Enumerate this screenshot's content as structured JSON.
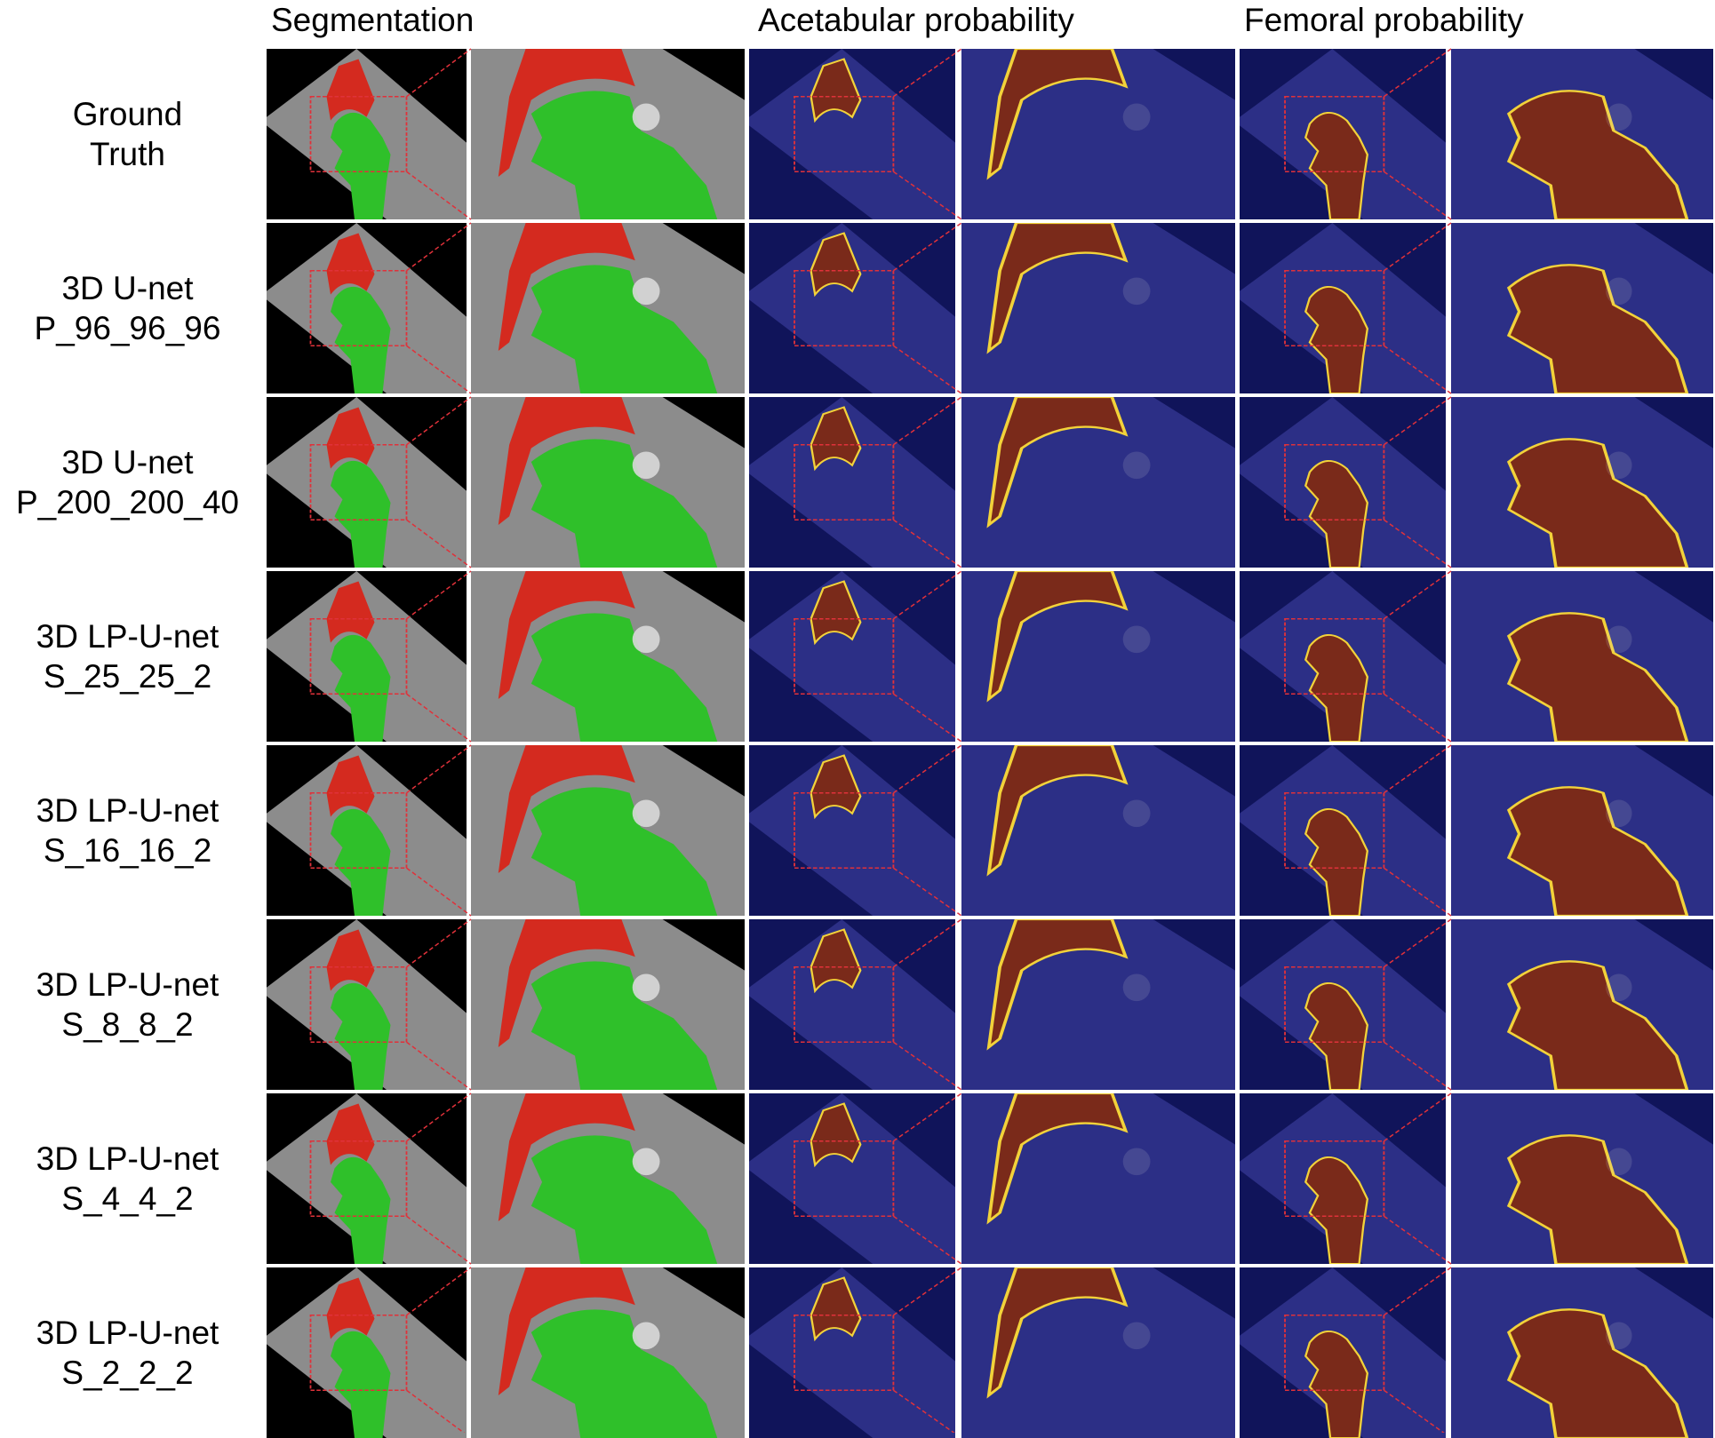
{
  "columns": {
    "segmentation": "Segmentation",
    "acetabular": "Acetabular probability",
    "femoral": "Femoral probability"
  },
  "rows": [
    {
      "line1": "Ground",
      "line2": "Truth"
    },
    {
      "line1": "3D U-net",
      "line2": "P_96_96_96"
    },
    {
      "line1": "3D U-net",
      "line2": "P_200_200_40"
    },
    {
      "line1": "3D LP-U-net",
      "line2": "S_25_25_2"
    },
    {
      "line1": "3D LP-U-net",
      "line2": "S_16_16_2"
    },
    {
      "line1": "3D LP-U-net",
      "line2": "S_8_8_2"
    },
    {
      "line1": "3D LP-U-net",
      "line2": "S_4_4_2"
    },
    {
      "line1": "3D LP-U-net",
      "line2": "S_2_2_2"
    }
  ],
  "panel_types": [
    "segmentation",
    "segmentation-zoom",
    "acetabular",
    "acetabular-zoom",
    "femoral",
    "femoral-zoom"
  ],
  "colors": {
    "acetabulum": "#d42a1f",
    "femur": "#2fc02a",
    "mri_gray": "#8c8c8c",
    "heatmap_background": "#2c2f86",
    "heatmap_hot": "#7a2a1a",
    "zoom_box": "#e0313a"
  }
}
